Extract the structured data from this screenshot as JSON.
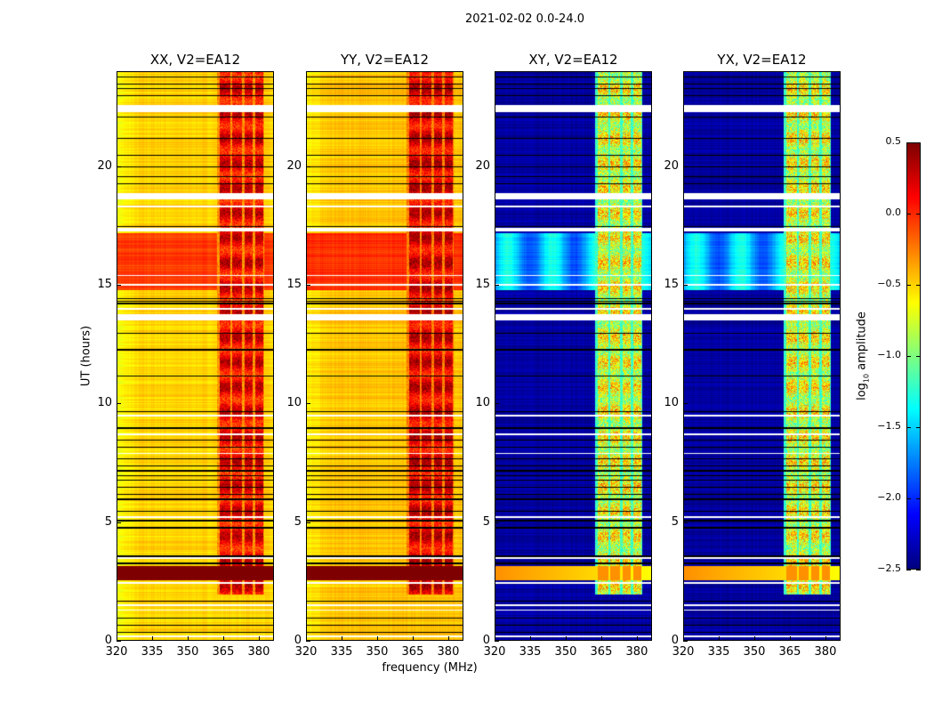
{
  "chart_data": {
    "type": "heatmap",
    "title": "2021-02-02 0.0-24.0",
    "xlabel": "frequency (MHz)",
    "ylabel": "UT (hours)",
    "xlim": [
      320,
      386.4
    ],
    "ylim": [
      0,
      24
    ],
    "xticks": [
      320,
      335,
      350,
      365,
      380
    ],
    "xtick_labels": [
      "320",
      "335",
      "350",
      "365",
      "380"
    ],
    "yticks": [
      0,
      5,
      10,
      15,
      20
    ],
    "ytick_labels": [
      "0",
      "5",
      "10",
      "15",
      "20"
    ],
    "colorbar": {
      "label_prefix": "log",
      "label_sub": "10",
      "label_suffix": " amplitude",
      "colormap": "jet",
      "range": [
        -2.5,
        0.5
      ],
      "ticks": [
        0.5,
        0.0,
        -0.5,
        -1.0,
        -1.5,
        -2.0,
        -2.5
      ],
      "tick_labels": [
        "0.5",
        "0.0",
        "−0.5",
        "−1.0",
        "−1.5",
        "−2.0",
        "−2.5"
      ]
    },
    "panels": [
      {
        "title": "XX, V2=EA12",
        "base": -0.5,
        "bright_band": -0.05,
        "strong_band": 0.5,
        "rfi_level": 0.15
      },
      {
        "title": "YY, V2=EA12",
        "base": -0.45,
        "bright_band": 0.0,
        "strong_band": 0.5,
        "rfi_level": 0.2
      },
      {
        "title": "XY, V2=EA12",
        "base": -2.4,
        "bright_band": -1.6,
        "strong_band": -0.3,
        "rfi_level": -0.7
      },
      {
        "title": "YX, V2=EA12",
        "base": -2.4,
        "bright_band": -1.6,
        "strong_band": -0.3,
        "rfi_level": -0.7
      }
    ],
    "bright_band_hours": [
      14.8,
      17.2
    ],
    "strong_band_hours": [
      2.6,
      3.2
    ],
    "rfi_channels_mhz": [
      [
        363,
        367.5
      ],
      [
        368.5,
        372.5
      ],
      [
        373.5,
        377
      ],
      [
        378,
        381.5
      ]
    ],
    "flagged_hours_white": [
      [
        22.3,
        22.6
      ],
      [
        18.65,
        18.9
      ],
      [
        18.3,
        18.38
      ],
      [
        17.3,
        17.42
      ],
      [
        15.4,
        15.46
      ],
      [
        15.0,
        15.06
      ],
      [
        14.0,
        14.08
      ],
      [
        13.55,
        13.8
      ],
      [
        9.5,
        9.56
      ],
      [
        8.7,
        8.76
      ],
      [
        7.9,
        7.96
      ],
      [
        5.2,
        5.28
      ],
      [
        3.5,
        3.56
      ],
      [
        2.45,
        2.5
      ],
      [
        1.5,
        1.56
      ],
      [
        1.3,
        1.35
      ],
      [
        0.2,
        0.25
      ]
    ],
    "zero_rows_black": [
      23.8,
      23.5,
      23.3,
      23.0,
      22.1,
      21.2,
      20.5,
      20.0,
      19.6,
      19.3,
      17.5,
      14.25,
      14.35,
      14.45,
      13.0,
      12.3,
      11.2,
      9.7,
      9.0,
      8.5,
      8.2,
      7.7,
      7.4,
      7.2,
      7.0,
      6.8,
      6.5,
      6.2,
      6.0,
      5.5,
      5.1,
      4.8,
      3.6,
      3.3,
      1.7,
      1.0,
      0.7,
      0.4
    ]
  }
}
